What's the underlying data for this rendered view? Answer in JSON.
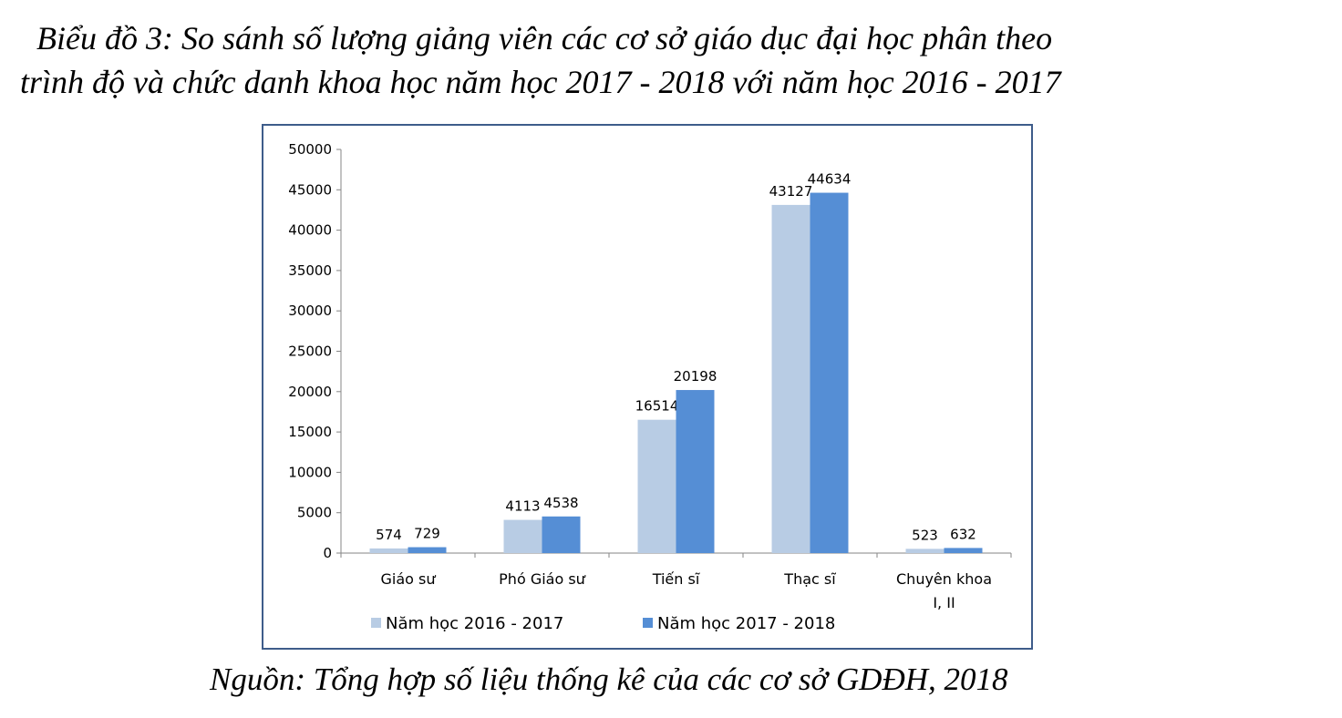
{
  "caption": {
    "line1": "Biểu đồ 3: So sánh số lượng giảng viên các cơ sở giáo dục đại học phân theo",
    "line2": "trình độ và chức danh khoa học năm học 2017 - 2018 với năm học 2016 - 2017",
    "source": "Nguồn: Tổng hợp số liệu thống kê của các cơ sở GDĐH, 2018"
  },
  "chart_data": {
    "type": "bar",
    "categories": [
      [
        "Giáo sư"
      ],
      [
        "Phó Giáo sư"
      ],
      [
        "Tiến sĩ"
      ],
      [
        "Thạc sĩ"
      ],
      [
        "Chuyên khoa",
        "I, II"
      ]
    ],
    "series": [
      {
        "name": "Năm học 2016 - 2017",
        "color": "#b8cce4",
        "values": [
          574,
          4113,
          16514,
          43127,
          523
        ]
      },
      {
        "name": "Năm học 2017 - 2018",
        "color": "#558ed5",
        "values": [
          729,
          4538,
          20198,
          44634,
          632
        ]
      }
    ],
    "ylim": [
      0,
      50000
    ],
    "yticks": [
      0,
      5000,
      10000,
      15000,
      20000,
      25000,
      30000,
      35000,
      40000,
      45000,
      50000
    ],
    "grid": false,
    "legend": "bottom",
    "axis_color": "#868686"
  }
}
